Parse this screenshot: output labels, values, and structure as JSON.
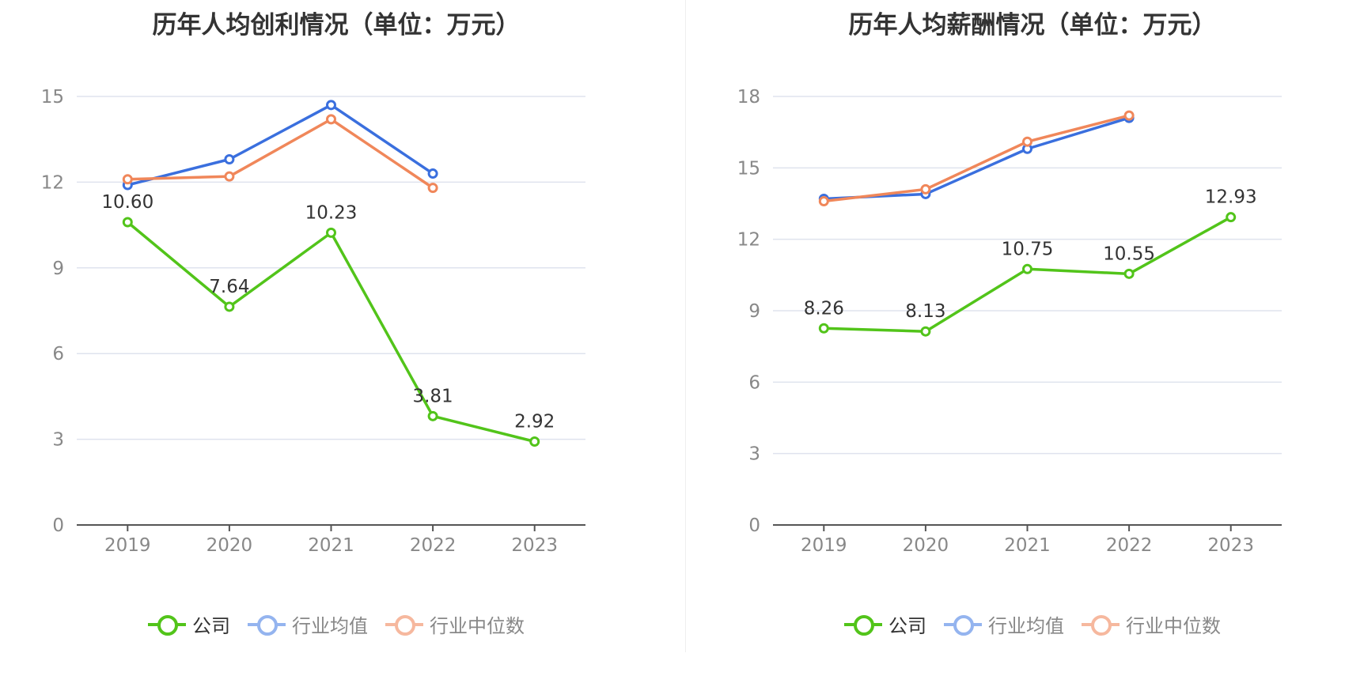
{
  "legend": {
    "company": "公司",
    "industry_avg": "行业均值",
    "industry_median": "行业中位数"
  },
  "colors": {
    "company": "#52c41a",
    "industry_avg": "#3a6fde",
    "industry_median": "#f0875a",
    "industry_avg_legend": "#94b4ef",
    "industry_median_legend": "#f6b89e"
  },
  "chart_data": [
    {
      "type": "line",
      "title": "历年人均创利情况（单位：万元）",
      "x": [
        "2019",
        "2020",
        "2021",
        "2022",
        "2023"
      ],
      "ylim": [
        0,
        15
      ],
      "yticks": [
        0,
        3,
        6,
        9,
        12,
        15
      ],
      "grid": true,
      "legend_position": "bottom",
      "series": [
        {
          "name": "公司",
          "values": [
            10.6,
            7.64,
            10.23,
            3.81,
            2.92
          ],
          "labels": [
            "10.60",
            "7.64",
            "10.23",
            "3.81",
            "2.92"
          ]
        },
        {
          "name": "行业均值",
          "values": [
            11.9,
            12.8,
            14.7,
            12.3,
            null
          ]
        },
        {
          "name": "行业中位数",
          "values": [
            12.1,
            12.2,
            14.2,
            11.8,
            null
          ]
        }
      ]
    },
    {
      "type": "line",
      "title": "历年人均薪酬情况（单位：万元）",
      "x": [
        "2019",
        "2020",
        "2021",
        "2022",
        "2023"
      ],
      "ylim": [
        0,
        18
      ],
      "yticks": [
        0,
        3,
        6,
        9,
        12,
        15,
        18
      ],
      "grid": true,
      "legend_position": "bottom",
      "series": [
        {
          "name": "公司",
          "values": [
            8.26,
            8.13,
            10.75,
            10.55,
            12.93
          ],
          "labels": [
            "8.26",
            "8.13",
            "10.75",
            "10.55",
            "12.93"
          ]
        },
        {
          "name": "行业均值",
          "values": [
            13.7,
            13.9,
            15.8,
            17.1,
            null
          ]
        },
        {
          "name": "行业中位数",
          "values": [
            13.6,
            14.1,
            16.1,
            17.2,
            null
          ]
        }
      ]
    }
  ]
}
